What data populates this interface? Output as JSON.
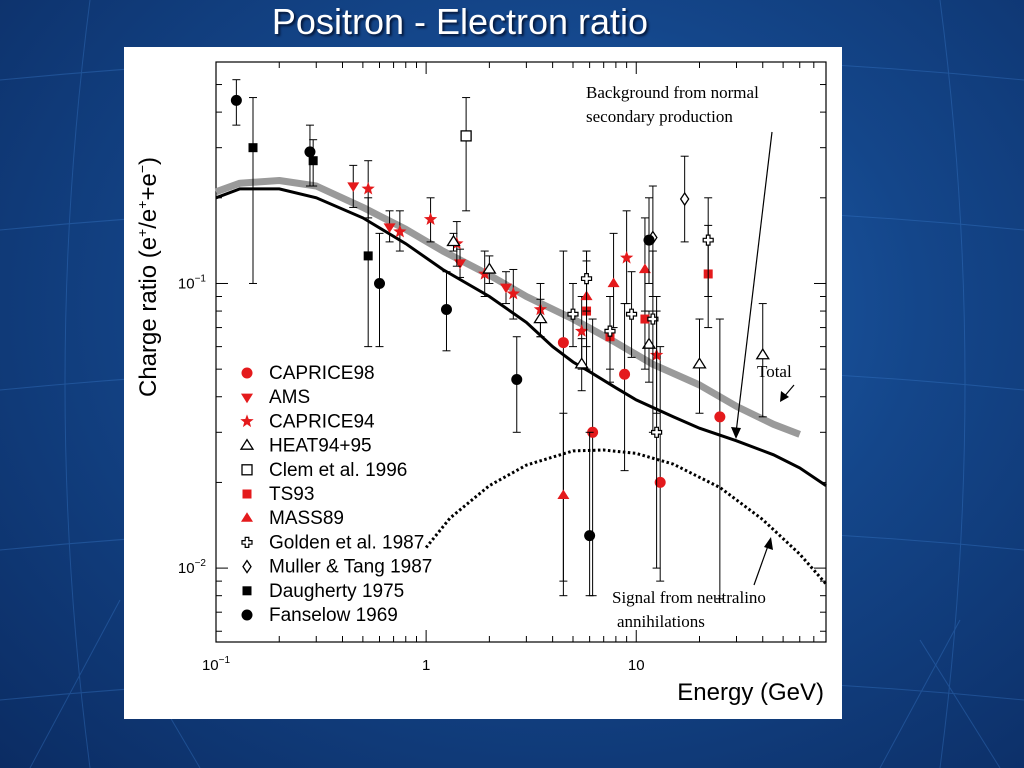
{
  "title": "Positron - Electron ratio",
  "colors": {
    "marker": "#e41a1c",
    "background_curve": "#9a9a9a",
    "total_curve": "#000000",
    "signal_curve": "#000000"
  },
  "chart_data": {
    "type": "scatter",
    "xlabel": "Energy (GeV)",
    "ylabel_parts": [
      "Charge ratio (e",
      "+",
      "/e",
      "+",
      "+e",
      "−",
      ")"
    ],
    "x_scale": "log",
    "y_scale": "log",
    "xlim": [
      0.1,
      80
    ],
    "ylim": [
      0.0055,
      0.6
    ],
    "x_ticks": [
      {
        "value": 0.1,
        "label_base": "10",
        "label_exp": "−1"
      },
      {
        "value": 1,
        "label_base": "1",
        "label_exp": ""
      },
      {
        "value": 10,
        "label_base": "10",
        "label_exp": ""
      }
    ],
    "y_ticks": [
      {
        "value": 0.1,
        "label_base": "10",
        "label_exp": "−1"
      },
      {
        "value": 0.01,
        "label_base": "10",
        "label_exp": "−2"
      }
    ],
    "legend_position": "bottom-left",
    "annotations": {
      "background": [
        "Background from normal",
        "secondary production"
      ],
      "total": "Total",
      "signal": [
        "Signal from neutralino",
        "annihilations"
      ]
    },
    "curves": [
      {
        "role": "background",
        "x": [
          0.1,
          0.13,
          0.2,
          0.3,
          0.5,
          0.8,
          1.2,
          2,
          3,
          5,
          8,
          12,
          20,
          30,
          45,
          60
        ],
        "y": [
          0.21,
          0.225,
          0.23,
          0.22,
          0.185,
          0.155,
          0.13,
          0.107,
          0.09,
          0.075,
          0.062,
          0.052,
          0.044,
          0.037,
          0.032,
          0.0295
        ]
      },
      {
        "role": "total",
        "x": [
          0.1,
          0.13,
          0.2,
          0.3,
          0.5,
          0.8,
          1.2,
          2,
          3,
          4,
          5,
          6,
          8,
          10,
          15,
          20,
          30,
          45,
          60,
          80
        ],
        "y": [
          0.2,
          0.215,
          0.215,
          0.2,
          0.17,
          0.138,
          0.112,
          0.09,
          0.073,
          0.06,
          0.053,
          0.049,
          0.043,
          0.039,
          0.034,
          0.031,
          0.028,
          0.025,
          0.0225,
          0.0195
        ]
      },
      {
        "role": "signal",
        "x": [
          1,
          1.3,
          2,
          3,
          5,
          7,
          10,
          15,
          25,
          40,
          60,
          80
        ],
        "y": [
          0.0118,
          0.015,
          0.0195,
          0.023,
          0.0258,
          0.026,
          0.0253,
          0.0232,
          0.0192,
          0.0148,
          0.0112,
          0.0088
        ]
      }
    ],
    "series": [
      {
        "name": "CAPRICE98",
        "marker": "filled-circle",
        "color": "red",
        "points": [
          {
            "x": 4.5,
            "y": 0.062,
            "lo": 0.008,
            "hi": 0.13
          },
          {
            "x": 6.2,
            "y": 0.03,
            "lo": 0.008,
            "hi": 0.075
          },
          {
            "x": 8.8,
            "y": 0.048,
            "lo": 0.022,
            "hi": 0.085
          },
          {
            "x": 13,
            "y": 0.02,
            "lo": 0.009,
            "hi": 0.06
          },
          {
            "x": 25,
            "y": 0.034,
            "lo": 0.0078,
            "hi": 0.075
          }
        ]
      },
      {
        "name": "AMS",
        "marker": "filled-triangle-down",
        "color": "red",
        "points": [
          {
            "x": 0.45,
            "y": 0.22,
            "lo": 0.185,
            "hi": 0.26
          },
          {
            "x": 0.67,
            "y": 0.158,
            "lo": 0.14,
            "hi": 0.18
          },
          {
            "x": 1.45,
            "y": 0.118,
            "lo": 0.105,
            "hi": 0.132
          },
          {
            "x": 2.4,
            "y": 0.097,
            "lo": 0.085,
            "hi": 0.11
          }
        ]
      },
      {
        "name": "CAPRICE94",
        "marker": "filled-star",
        "color": "red",
        "points": [
          {
            "x": 0.53,
            "y": 0.215,
            "lo": 0.17,
            "hi": 0.27
          },
          {
            "x": 0.75,
            "y": 0.152,
            "lo": 0.13,
            "hi": 0.18
          },
          {
            "x": 1.05,
            "y": 0.168,
            "lo": 0.14,
            "hi": 0.2
          },
          {
            "x": 1.4,
            "y": 0.138,
            "lo": 0.115,
            "hi": 0.165
          },
          {
            "x": 1.9,
            "y": 0.108,
            "lo": 0.09,
            "hi": 0.13
          },
          {
            "x": 2.6,
            "y": 0.092,
            "lo": 0.075,
            "hi": 0.112
          },
          {
            "x": 3.5,
            "y": 0.081,
            "lo": 0.065,
            "hi": 0.1
          },
          {
            "x": 5.5,
            "y": 0.068,
            "lo": 0.05,
            "hi": 0.09
          },
          {
            "x": 9,
            "y": 0.123,
            "lo": 0.085,
            "hi": 0.18
          },
          {
            "x": 12.5,
            "y": 0.056,
            "lo": 0.035,
            "hi": 0.08
          }
        ]
      },
      {
        "name": "HEAT94+95",
        "marker": "open-triangle",
        "color": "black",
        "points": [
          {
            "x": 1.35,
            "y": 0.14,
            "lo": 0.13,
            "hi": 0.15
          },
          {
            "x": 2.0,
            "y": 0.112,
            "lo": 0.1,
            "hi": 0.125
          },
          {
            "x": 3.5,
            "y": 0.075,
            "lo": 0.065,
            "hi": 0.088
          },
          {
            "x": 5.5,
            "y": 0.052,
            "lo": 0.042,
            "hi": 0.064
          },
          {
            "x": 11.5,
            "y": 0.061,
            "lo": 0.045,
            "hi": 0.08
          },
          {
            "x": 20,
            "y": 0.052,
            "lo": 0.035,
            "hi": 0.075
          },
          {
            "x": 40,
            "y": 0.056,
            "lo": 0.034,
            "hi": 0.085
          }
        ]
      },
      {
        "name": "Clem et al. 1996",
        "marker": "open-square",
        "color": "black",
        "points": [
          {
            "x": 1.55,
            "y": 0.33,
            "lo": 0.18,
            "hi": 0.45
          }
        ]
      },
      {
        "name": "TS93",
        "marker": "filled-square",
        "color": "red",
        "points": [
          {
            "x": 5.8,
            "y": 0.08,
            "lo": 0.05,
            "hi": 0.12
          },
          {
            "x": 7.5,
            "y": 0.065,
            "lo": 0.045,
            "hi": 0.09
          },
          {
            "x": 11,
            "y": 0.075,
            "lo": 0.05,
            "hi": 0.11
          },
          {
            "x": 22,
            "y": 0.108,
            "lo": 0.07,
            "hi": 0.16
          }
        ]
      },
      {
        "name": "MASS89",
        "marker": "filled-triangle-up",
        "color": "red",
        "points": [
          {
            "x": 4.5,
            "y": 0.018,
            "lo": 0.009,
            "hi": 0.035
          },
          {
            "x": 5.8,
            "y": 0.09,
            "lo": 0.06,
            "hi": 0.13
          },
          {
            "x": 7.8,
            "y": 0.1,
            "lo": 0.07,
            "hi": 0.15
          },
          {
            "x": 11,
            "y": 0.112,
            "lo": 0.08,
            "hi": 0.17
          }
        ]
      },
      {
        "name": "Golden et al. 1987",
        "marker": "open-cross",
        "color": "black",
        "points": [
          {
            "x": 5.0,
            "y": 0.078,
            "lo": 0.06,
            "hi": 0.1
          },
          {
            "x": 5.8,
            "y": 0.104,
            "lo": 0.08,
            "hi": 0.13
          },
          {
            "x": 7.5,
            "y": 0.068,
            "lo": 0.05,
            "hi": 0.09
          },
          {
            "x": 9.5,
            "y": 0.078,
            "lo": 0.055,
            "hi": 0.11
          },
          {
            "x": 12,
            "y": 0.075,
            "lo": 0.03,
            "hi": 0.13
          },
          {
            "x": 12.5,
            "y": 0.03,
            "lo": 0.01,
            "hi": 0.09
          },
          {
            "x": 22,
            "y": 0.142,
            "lo": 0.09,
            "hi": 0.2
          }
        ]
      },
      {
        "name": "Muller & Tang 1987",
        "marker": "open-diamond",
        "color": "black",
        "points": [
          {
            "x": 12,
            "y": 0.145,
            "lo": 0.09,
            "hi": 0.22
          },
          {
            "x": 17,
            "y": 0.198,
            "lo": 0.14,
            "hi": 0.28
          }
        ]
      },
      {
        "name": "Daugherty 1975",
        "marker": "filled-square",
        "color": "black",
        "points": [
          {
            "x": 0.15,
            "y": 0.3,
            "lo": 0.1,
            "hi": 0.45
          },
          {
            "x": 0.29,
            "y": 0.27,
            "lo": 0.22,
            "hi": 0.32
          },
          {
            "x": 0.53,
            "y": 0.125,
            "lo": 0.06,
            "hi": 0.2
          }
        ]
      },
      {
        "name": "Fanselow 1969",
        "marker": "filled-circle",
        "color": "black",
        "points": [
          {
            "x": 0.125,
            "y": 0.44,
            "lo": 0.36,
            "hi": 0.52
          },
          {
            "x": 0.28,
            "y": 0.29,
            "lo": 0.22,
            "hi": 0.36
          },
          {
            "x": 0.6,
            "y": 0.1,
            "lo": 0.06,
            "hi": 0.15
          },
          {
            "x": 1.25,
            "y": 0.081,
            "lo": 0.058,
            "hi": 0.11
          },
          {
            "x": 2.7,
            "y": 0.046,
            "lo": 0.03,
            "hi": 0.065
          },
          {
            "x": 6.0,
            "y": 0.013,
            "lo": 0.008,
            "hi": 0.03
          },
          {
            "x": 11.5,
            "y": 0.142,
            "lo": 0.1,
            "hi": 0.2
          }
        ]
      }
    ]
  }
}
